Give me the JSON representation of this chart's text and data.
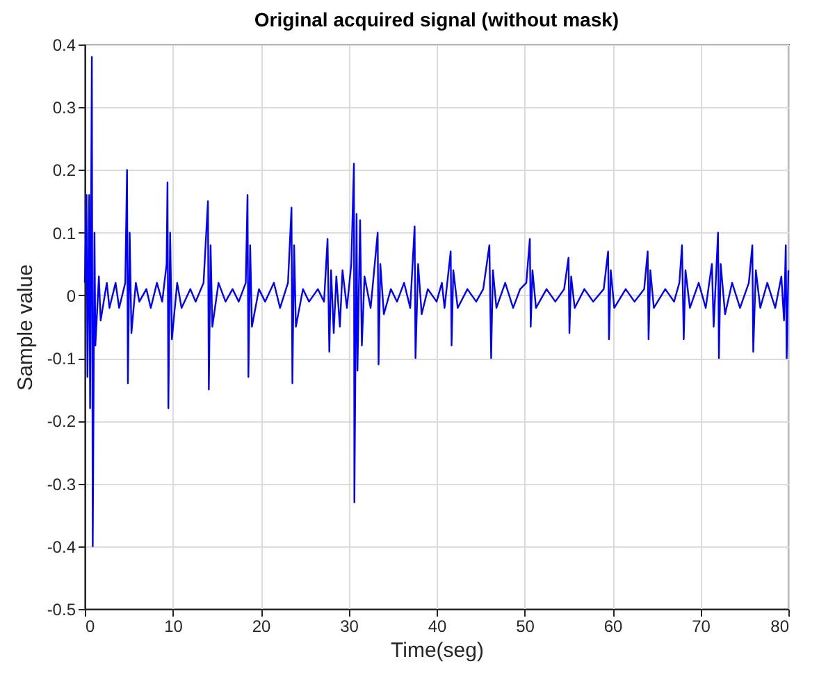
{
  "chart_data": {
    "type": "line",
    "title": "Original acquired signal (without mask)",
    "xlabel": "Time(seg)",
    "ylabel": "Sample value",
    "xlim": [
      0,
      80
    ],
    "xticks": [
      0,
      10,
      20,
      30,
      40,
      50,
      60,
      70,
      80
    ],
    "ylim": [
      -0.5,
      0.4
    ],
    "yticks": [
      -0.5,
      -0.4,
      -0.3,
      -0.2,
      -0.1,
      0,
      0.1,
      0.2,
      0.3,
      0.4
    ],
    "grid": true,
    "marker": "none",
    "line_style": "solid",
    "x": [
      0,
      0.2,
      0.3,
      0.5,
      0.6,
      0.8,
      0.9,
      1.1,
      1.2,
      1.6,
      1.8,
      2.5,
      2.8,
      3.5,
      3.9,
      4.6,
      4.8,
      4.9,
      5.1,
      5.3,
      5.8,
      6.2,
      7,
      7.5,
      8.2,
      8.8,
      9.3,
      9.4,
      9.5,
      9.7,
      9.9,
      10.5,
      11,
      12,
      12.6,
      13.5,
      14.0,
      14.1,
      14.3,
      14.5,
      15.2,
      16,
      16.8,
      17.5,
      18.3,
      18.5,
      18.6,
      18.8,
      19,
      19.8,
      20.5,
      21.5,
      22.2,
      23.1,
      23.5,
      23.6,
      23.8,
      24,
      24.8,
      25.5,
      26.5,
      27.2,
      27.6,
      27.8,
      28,
      28.3,
      28.6,
      29,
      29.3,
      29.8,
      30.3,
      30.6,
      30.65,
      30.9,
      31.0,
      31.3,
      31.5,
      31.8,
      32.5,
      33.3,
      33.4,
      33.6,
      34,
      34.8,
      35.5,
      36.3,
      37,
      37.5,
      37.6,
      37.9,
      38.3,
      39,
      40,
      40.6,
      40.9,
      41.6,
      41.7,
      41.9,
      42.4,
      43.5,
      44.5,
      45.3,
      46.0,
      46.2,
      46.4,
      46.8,
      47.8,
      48.7,
      49.5,
      50.2,
      50.6,
      50.7,
      50.9,
      51.3,
      52.5,
      53.5,
      54.5,
      55.0,
      55.1,
      55.3,
      55.7,
      56.8,
      57.8,
      59,
      59.5,
      59.6,
      59.8,
      60.2,
      61.5,
      62.5,
      63.6,
      64.0,
      64.1,
      64.3,
      64.7,
      66,
      67,
      67.6,
      67.9,
      68.1,
      68.3,
      68.8,
      69.8,
      70.6,
      71.3,
      71.5,
      72.0,
      72.1,
      72.3,
      72.8,
      73.6,
      74.5,
      75.5,
      75.9,
      76.0,
      76.3,
      76.8,
      77.6,
      78.5,
      79.2,
      79.5,
      79.7,
      79.8,
      80
    ],
    "series": [
      {
        "color": "#0000ff",
        "values": [
          0.02,
          0.16,
          -0.13,
          0.16,
          -0.18,
          0.38,
          -0.4,
          0.1,
          -0.08,
          0.03,
          -0.04,
          0.02,
          -0.02,
          0.02,
          -0.02,
          0.02,
          0.2,
          -0.14,
          0.1,
          -0.06,
          0.02,
          -0.01,
          0.01,
          -0.02,
          0.02,
          -0.01,
          0.05,
          0.18,
          -0.18,
          0.1,
          -0.07,
          0.02,
          -0.02,
          0.01,
          -0.01,
          0.02,
          0.15,
          -0.15,
          0.08,
          -0.05,
          0.02,
          -0.01,
          0.01,
          -0.01,
          0.02,
          0.16,
          -0.13,
          0.08,
          -0.05,
          0.01,
          -0.01,
          0.02,
          -0.02,
          0.02,
          0.14,
          -0.14,
          0.08,
          -0.05,
          0.01,
          -0.01,
          0.01,
          -0.01,
          0.09,
          -0.09,
          0.04,
          -0.06,
          0.03,
          -0.05,
          0.04,
          -0.02,
          0.05,
          0.21,
          -0.33,
          0.13,
          -0.12,
          0.12,
          -0.08,
          0.03,
          -0.02,
          0.1,
          -0.11,
          0.05,
          -0.03,
          0.01,
          -0.01,
          0.02,
          -0.02,
          0.11,
          -0.1,
          0.05,
          -0.03,
          0.01,
          -0.01,
          0.02,
          -0.02,
          0.07,
          -0.08,
          0.04,
          -0.02,
          0.01,
          -0.01,
          0.01,
          0.08,
          -0.1,
          0.04,
          -0.02,
          0.02,
          -0.02,
          0.01,
          0.02,
          0.09,
          -0.05,
          0.04,
          -0.02,
          0.01,
          -0.01,
          0.01,
          0.06,
          -0.06,
          0.03,
          -0.02,
          0.01,
          -0.01,
          0.01,
          0.07,
          -0.07,
          0.04,
          -0.02,
          0.01,
          -0.01,
          0.01,
          0.07,
          -0.07,
          0.04,
          -0.02,
          0.01,
          -0.01,
          0.02,
          0.08,
          -0.07,
          0.04,
          -0.02,
          0.02,
          -0.02,
          0.05,
          -0.05,
          0.1,
          -0.1,
          0.05,
          -0.03,
          0.02,
          -0.02,
          0.02,
          0.08,
          -0.09,
          0.04,
          -0.02,
          0.02,
          -0.02,
          0.03,
          -0.04,
          0.08,
          -0.1,
          0.04
        ]
      }
    ]
  }
}
